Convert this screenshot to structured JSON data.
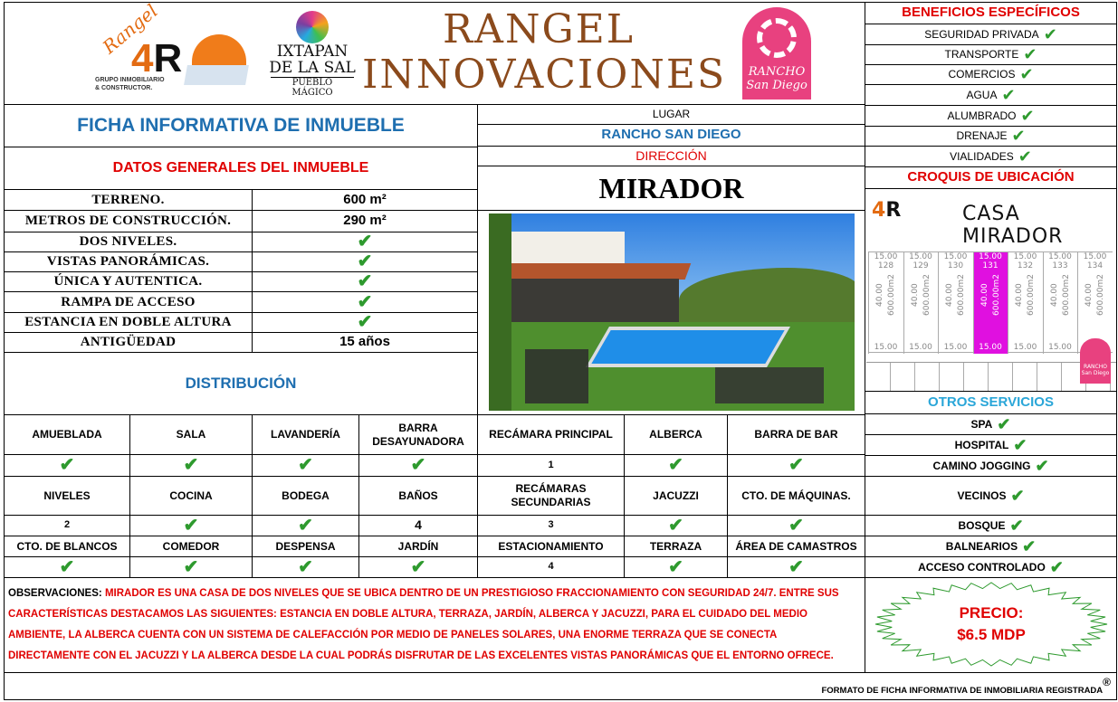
{
  "header": {
    "title_line1": "RANGEL",
    "title_line2": "INNOVACIONES",
    "logo_left": "Rangel INNOVACIONES - GRUPO INMOBILIARIO & CONSTRUCTOR.",
    "logo_ixtapan": [
      "IXTAPAN",
      "DE LA SAL",
      "PUEBLO MÁGICO"
    ],
    "logo_rancho": [
      "RANCHO",
      "San Diego"
    ]
  },
  "ficha_title": "FICHA INFORMATIVA DE INMUEBLE",
  "datos_title": "DATOS GENERALES DEL INMUEBLE",
  "datos": [
    {
      "label": "TERRENO.",
      "value": "600 m²"
    },
    {
      "label": "METROS DE CONSTRUCCIÓN.",
      "value": "290 m²"
    },
    {
      "label": "DOS NIVELES.",
      "value": "✔"
    },
    {
      "label": "VISTAS PANORÁMICAS.",
      "value": "✔"
    },
    {
      "label": "ÚNICA Y AUTENTICA.",
      "value": "✔"
    },
    {
      "label": "RAMPA DE ACCESO",
      "value": "✔"
    },
    {
      "label": "ESTANCIA EN DOBLE ALTURA",
      "value": "✔"
    },
    {
      "label": "ANTIGÜEDAD",
      "value": "15 años"
    }
  ],
  "distribucion_title": "DISTRIBUCIÓN",
  "lugar_label": "LUGAR",
  "lugar_value": "RANCHO SAN DIEGO",
  "direccion_label": "DIRECCIÓN",
  "direccion_value": "MIRADOR",
  "beneficios_title": "BENEFICIOS ESPECÍFICOS",
  "beneficios": [
    "SEGURIDAD PRIVADA",
    "TRANSPORTE",
    "COMERCIOS",
    "AGUA",
    "ALUMBRADO",
    "DRENAJE",
    "VIALIDADES"
  ],
  "croquis_title": "CROQUIS DE UBICACIÓN",
  "croquis": {
    "caption": "CASA MIRADOR",
    "lots": [
      "128",
      "129",
      "130",
      "131",
      "132",
      "133",
      "134"
    ],
    "front": "15.00",
    "depth": "40.00",
    "area": "600.00m2"
  },
  "otros_title": "OTROS SERVICIOS",
  "otros": [
    "SPA",
    "HOSPITAL",
    "CAMINO JOGGING",
    "VECINOS",
    "BOSQUE",
    "BALNEARIOS",
    "ACCESO CONTROLADO"
  ],
  "grid": [
    [
      [
        "AMUEBLADA",
        "✔"
      ],
      [
        "SALA",
        "✔"
      ],
      [
        "LAVANDERÍA",
        "✔"
      ],
      [
        "BARRA DESAYUNADORA",
        "✔"
      ],
      [
        "RECÁMARA PRINCIPAL",
        "1"
      ],
      [
        "ALBERCA",
        "✔"
      ],
      [
        "BARRA DE BAR",
        "✔"
      ]
    ],
    [
      [
        "NIVELES",
        "2"
      ],
      [
        "COCINA",
        "✔"
      ],
      [
        "BODEGA",
        "✔"
      ],
      [
        "BAÑOS",
        "4"
      ],
      [
        "RECÁMARAS SECUNDARIAS",
        "3"
      ],
      [
        "JACUZZI",
        "✔"
      ],
      [
        "CTO. DE MÁQUINAS.",
        "✔"
      ]
    ],
    [
      [
        "CTO. DE BLANCOS",
        "✔"
      ],
      [
        "COMEDOR",
        "✔"
      ],
      [
        "DESPENSA",
        "✔"
      ],
      [
        "JARDÍN",
        "✔"
      ],
      [
        "ESTACIONAMIENTO",
        "4"
      ],
      [
        "TERRAZA",
        "✔"
      ],
      [
        "ÁREA DE CAMASTROS",
        "✔"
      ]
    ]
  ],
  "observaciones_label": "OBSERVACIONES:",
  "observaciones_text": "MIRADOR ES UNA CASA DE DOS NIVELES QUE SE UBICA DENTRO DE UN PRESTIGIOSO FRACCIONAMIENTO CON SEGURIDAD 24/7. ENTRE SUS CARACTERÍSTICAS DESTACAMOS LAS SIGUIENTES: ESTANCIA EN DOBLE ALTURA, TERRAZA, JARDÍN, ALBERCA Y JACUZZI, PARA EL CUIDADO DEL MEDIO AMBIENTE, LA ALBERCA CUENTA CON UN SISTEMA DE CALEFACCIÓN POR MEDIO DE PANELES SOLARES, UNA ENORME TERRAZA QUE SE CONECTA DIRECTAMENTE CON EL JACUZZI Y LA ALBERCA DESDE LA CUAL PODRÁS DISFRUTAR DE LAS EXCELENTES VISTAS PANORÁMICAS QUE EL ENTORNO OFRECE.",
  "precio_label": "PRECIO:",
  "precio_value": "$6.5 MDP",
  "footer": "FORMATO DE FICHA INFORMATIVA DE INMOBILIARIA REGISTRADA",
  "footer_mark": "®",
  "colors": {
    "title_brown": "#8b4a1c",
    "heading_blue": "#1f6fb0",
    "accent_red": "#e00000",
    "check_green": "#2e9a2e",
    "lot_highlight": "#e010e0",
    "rancho_pink": "#e8417f"
  }
}
